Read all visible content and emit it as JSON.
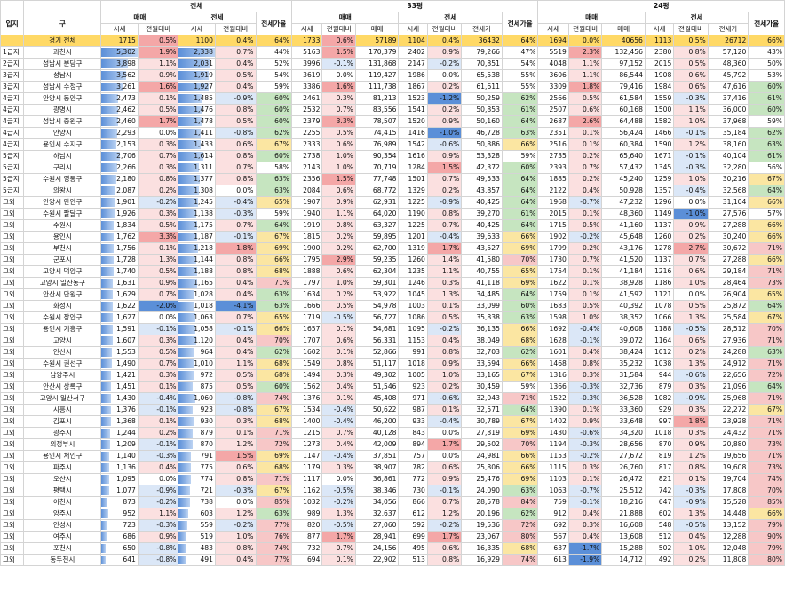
{
  "headers": {
    "ipji": "입지",
    "gu": "구",
    "groups": [
      "전체",
      "33평",
      "24평"
    ],
    "sub": [
      "매매",
      "전세",
      "전세가율"
    ],
    "sub_nested": [
      "매매",
      "전세",
      "전세가",
      "전세가율"
    ],
    "leaf": [
      "시세",
      "전월대비"
    ]
  },
  "total": {
    "ipji": "",
    "gu": "경기 전체",
    "v": [
      "1715",
      "0.5%",
      "1100",
      "0.4%",
      "64%",
      "1733",
      "0.6%",
      "57189",
      "1104",
      "0.4%",
      "36432",
      "64%",
      "1694",
      "0.0%",
      "40656",
      "1113",
      "0.5%",
      "26712",
      "66%"
    ]
  },
  "rows": [
    {
      "ipji": "1급지",
      "gu": "과천시",
      "v": [
        "5,302",
        "1.9%",
        "2,338",
        "0.7%",
        "44%",
        "5163",
        "1.5%",
        "170,379",
        "2402",
        "0.9%",
        "79,266",
        "47%",
        "5519",
        "2.3%",
        "132,456",
        "2380",
        "0.8%",
        "57,120",
        "43%"
      ]
    },
    {
      "ipji": "2급지",
      "gu": "성남시 분당구",
      "v": [
        "3,898",
        "1.1%",
        "2,031",
        "0.4%",
        "52%",
        "3996",
        "-0.1%",
        "131,868",
        "2147",
        "-0.2%",
        "70,851",
        "54%",
        "4048",
        "1.1%",
        "97,152",
        "2015",
        "0.5%",
        "48,360",
        "50%"
      ]
    },
    {
      "ipji": "3급지",
      "gu": "성남시",
      "v": [
        "3,562",
        "0.9%",
        "1,919",
        "0.5%",
        "54%",
        "3619",
        "0.0%",
        "119,427",
        "1986",
        "0.0%",
        "65,538",
        "55%",
        "3606",
        "1.1%",
        "86,544",
        "1908",
        "0.6%",
        "45,792",
        "53%"
      ]
    },
    {
      "ipji": "3급지",
      "gu": "성남시 수정구",
      "v": [
        "3,261",
        "1.6%",
        "1,927",
        "0.4%",
        "59%",
        "3386",
        "1.6%",
        "111,738",
        "1867",
        "0.2%",
        "61,611",
        "55%",
        "3309",
        "1.8%",
        "79,416",
        "1984",
        "0.6%",
        "47,616",
        "60%"
      ]
    },
    {
      "ipji": "4급지",
      "gu": "안양시 동안구",
      "v": [
        "2,473",
        "0.1%",
        "1,485",
        "-0.9%",
        "60%",
        "2461",
        "0.3%",
        "81,213",
        "1523",
        "-1.2%",
        "50,259",
        "62%",
        "2566",
        "0.5%",
        "61,584",
        "1559",
        "-0.3%",
        "37,416",
        "61%"
      ]
    },
    {
      "ipji": "4급지",
      "gu": "광명시",
      "v": [
        "2,462",
        "0.5%",
        "1,476",
        "0.8%",
        "60%",
        "2532",
        "0.7%",
        "83,556",
        "1541",
        "0.2%",
        "50,853",
        "61%",
        "2507",
        "0.6%",
        "60,168",
        "1500",
        "1.1%",
        "36,000",
        "60%"
      ]
    },
    {
      "ipji": "4급지",
      "gu": "성남시 중원구",
      "v": [
        "2,460",
        "1.7%",
        "1,478",
        "0.5%",
        "60%",
        "2379",
        "3.3%",
        "78,507",
        "1520",
        "0.9%",
        "50,160",
        "64%",
        "2687",
        "2.6%",
        "64,488",
        "1582",
        "1.0%",
        "37,968",
        "59%"
      ]
    },
    {
      "ipji": "4급지",
      "gu": "안양시",
      "v": [
        "2,293",
        "0.0%",
        "1,411",
        "-0.8%",
        "62%",
        "2255",
        "0.5%",
        "74,415",
        "1416",
        "-1.0%",
        "46,728",
        "63%",
        "2351",
        "0.1%",
        "56,424",
        "1466",
        "-0.1%",
        "35,184",
        "62%"
      ]
    },
    {
      "ipji": "4급지",
      "gu": "용인시 수지구",
      "v": [
        "2,153",
        "0.3%",
        "1,433",
        "0.6%",
        "67%",
        "2333",
        "0.6%",
        "76,989",
        "1542",
        "-0.6%",
        "50,886",
        "66%",
        "2516",
        "0.1%",
        "60,384",
        "1590",
        "1.2%",
        "38,160",
        "63%"
      ]
    },
    {
      "ipji": "5급지",
      "gu": "하남시",
      "v": [
        "2,706",
        "0.7%",
        "1,614",
        "0.8%",
        "60%",
        "2738",
        "1.0%",
        "90,354",
        "1616",
        "0.9%",
        "53,328",
        "59%",
        "2735",
        "0.2%",
        "65,640",
        "1671",
        "-0.1%",
        "40,104",
        "61%"
      ]
    },
    {
      "ipji": "5급지",
      "gu": "구리시",
      "v": [
        "2,266",
        "0.3%",
        "1,311",
        "0.7%",
        "58%",
        "2143",
        "1.0%",
        "70,719",
        "1284",
        "1.5%",
        "42,372",
        "60%",
        "2393",
        "0.7%",
        "57,432",
        "1345",
        "-0.3%",
        "32,280",
        "56%"
      ]
    },
    {
      "ipji": "5급지",
      "gu": "수원시 영통구",
      "v": [
        "2,180",
        "0.8%",
        "1,377",
        "0.8%",
        "63%",
        "2356",
        "1.5%",
        "77,748",
        "1501",
        "0.7%",
        "49,533",
        "64%",
        "1885",
        "0.2%",
        "45,240",
        "1259",
        "1.0%",
        "30,216",
        "67%"
      ]
    },
    {
      "ipji": "5급지",
      "gu": "의왕시",
      "v": [
        "2,087",
        "0.2%",
        "1,308",
        "0.0%",
        "63%",
        "2084",
        "0.6%",
        "68,772",
        "1329",
        "0.2%",
        "43,857",
        "64%",
        "2122",
        "0.4%",
        "50,928",
        "1357",
        "-0.4%",
        "32,568",
        "64%"
      ]
    },
    {
      "ipji": "그외",
      "gu": "안양시 만안구",
      "v": [
        "1,901",
        "-0.2%",
        "1,245",
        "-0.4%",
        "65%",
        "1907",
        "0.9%",
        "62,931",
        "1225",
        "-0.9%",
        "40,425",
        "64%",
        "1968",
        "-0.7%",
        "47,232",
        "1296",
        "0.0%",
        "31,104",
        "66%"
      ]
    },
    {
      "ipji": "그외",
      "gu": "수원시 팔달구",
      "v": [
        "1,926",
        "0.3%",
        "1,138",
        "-0.3%",
        "59%",
        "1940",
        "1.1%",
        "64,020",
        "1190",
        "0.8%",
        "39,270",
        "61%",
        "2015",
        "0.1%",
        "48,360",
        "1149",
        "-1.0%",
        "27,576",
        "57%"
      ]
    },
    {
      "ipji": "그외",
      "gu": "수원시",
      "v": [
        "1,834",
        "0.5%",
        "1,175",
        "0.7%",
        "64%",
        "1919",
        "0.8%",
        "63,327",
        "1225",
        "0.7%",
        "40,425",
        "64%",
        "1715",
        "0.5%",
        "41,160",
        "1137",
        "0.9%",
        "27,288",
        "66%"
      ]
    },
    {
      "ipji": "그외",
      "gu": "용인시",
      "v": [
        "1,762",
        "3.3%",
        "1,187",
        "-0.1%",
        "67%",
        "1815",
        "0.2%",
        "59,895",
        "1201",
        "-0.4%",
        "39,633",
        "66%",
        "1902",
        "-0.2%",
        "45,648",
        "1260",
        "0.2%",
        "30,240",
        "66%"
      ]
    },
    {
      "ipji": "그외",
      "gu": "부천시",
      "v": [
        "1,756",
        "0.1%",
        "1,218",
        "1.8%",
        "69%",
        "1900",
        "0.2%",
        "62,700",
        "1319",
        "1.7%",
        "43,527",
        "69%",
        "1799",
        "0.2%",
        "43,176",
        "1278",
        "2.7%",
        "30,672",
        "71%"
      ]
    },
    {
      "ipji": "그외",
      "gu": "군포시",
      "v": [
        "1,728",
        "1.3%",
        "1,144",
        "0.8%",
        "66%",
        "1795",
        "2.9%",
        "59,235",
        "1260",
        "1.4%",
        "41,580",
        "70%",
        "1730",
        "0.7%",
        "41,520",
        "1137",
        "0.7%",
        "27,288",
        "66%"
      ]
    },
    {
      "ipji": "그외",
      "gu": "고양시 덕양구",
      "v": [
        "1,740",
        "0.5%",
        "1,188",
        "0.8%",
        "68%",
        "1888",
        "0.6%",
        "62,304",
        "1235",
        "1.1%",
        "40,755",
        "65%",
        "1754",
        "0.1%",
        "41,184",
        "1216",
        "0.6%",
        "29,184",
        "71%"
      ]
    },
    {
      "ipji": "그외",
      "gu": "고양시 일산동구",
      "v": [
        "1,631",
        "0.9%",
        "1,165",
        "0.4%",
        "71%",
        "1797",
        "1.0%",
        "59,301",
        "1246",
        "0.3%",
        "41,118",
        "69%",
        "1622",
        "0.1%",
        "38,928",
        "1186",
        "1.0%",
        "28,464",
        "73%"
      ]
    },
    {
      "ipji": "그외",
      "gu": "안산시 단원구",
      "v": [
        "1,629",
        "0.7%",
        "1,028",
        "0.4%",
        "63%",
        "1634",
        "0.2%",
        "53,922",
        "1045",
        "1.3%",
        "34,485",
        "64%",
        "1759",
        "0.1%",
        "41,592",
        "1121",
        "0.0%",
        "26,904",
        "65%"
      ]
    },
    {
      "ipji": "그외",
      "gu": "화성시",
      "v": [
        "1,622",
        "-2.0%",
        "1,018",
        "-4.1%",
        "63%",
        "1666",
        "0.5%",
        "54,978",
        "1003",
        "0.1%",
        "33,099",
        "60%",
        "1683",
        "0.5%",
        "40,392",
        "1078",
        "0.5%",
        "25,872",
        "64%"
      ]
    },
    {
      "ipji": "그외",
      "gu": "수원시 장안구",
      "v": [
        "1,627",
        "0.0%",
        "1,063",
        "0.7%",
        "65%",
        "1719",
        "-0.5%",
        "56,727",
        "1086",
        "0.5%",
        "35,838",
        "63%",
        "1598",
        "1.0%",
        "38,352",
        "1066",
        "1.3%",
        "25,584",
        "67%"
      ]
    },
    {
      "ipji": "그외",
      "gu": "용인시 기흥구",
      "v": [
        "1,591",
        "-0.1%",
        "1,058",
        "-0.1%",
        "66%",
        "1657",
        "0.1%",
        "54,681",
        "1095",
        "-0.2%",
        "36,135",
        "66%",
        "1692",
        "-0.4%",
        "40,608",
        "1188",
        "-0.5%",
        "28,512",
        "70%"
      ]
    },
    {
      "ipji": "그외",
      "gu": "고양시",
      "v": [
        "1,607",
        "0.3%",
        "1,120",
        "0.4%",
        "70%",
        "1707",
        "0.6%",
        "56,331",
        "1153",
        "0.4%",
        "38,049",
        "68%",
        "1628",
        "-0.1%",
        "39,072",
        "1164",
        "0.6%",
        "27,936",
        "71%"
      ]
    },
    {
      "ipji": "그외",
      "gu": "안산시",
      "v": [
        "1,553",
        "0.5%",
        "964",
        "0.4%",
        "62%",
        "1602",
        "0.1%",
        "52,866",
        "991",
        "0.8%",
        "32,703",
        "62%",
        "1601",
        "0.4%",
        "38,424",
        "1012",
        "0.2%",
        "24,288",
        "63%"
      ]
    },
    {
      "ipji": "그외",
      "gu": "수원시 권선구",
      "v": [
        "1,490",
        "0.7%",
        "1,010",
        "1.1%",
        "68%",
        "1549",
        "0.8%",
        "51,117",
        "1018",
        "0.9%",
        "33,594",
        "66%",
        "1468",
        "0.8%",
        "35,232",
        "1038",
        "1.3%",
        "24,912",
        "71%"
      ]
    },
    {
      "ipji": "그외",
      "gu": "남양주시",
      "v": [
        "1,421",
        "0.3%",
        "972",
        "0.5%",
        "68%",
        "1494",
        "0.3%",
        "49,302",
        "1005",
        "1.0%",
        "33,165",
        "67%",
        "1316",
        "0.3%",
        "31,584",
        "944",
        "-0.6%",
        "22,656",
        "72%"
      ]
    },
    {
      "ipji": "그외",
      "gu": "안산시 상록구",
      "v": [
        "1,451",
        "0.1%",
        "875",
        "0.5%",
        "60%",
        "1562",
        "0.4%",
        "51,546",
        "923",
        "0.2%",
        "30,459",
        "59%",
        "1366",
        "-0.3%",
        "32,736",
        "879",
        "0.3%",
        "21,096",
        "64%"
      ]
    },
    {
      "ipji": "그외",
      "gu": "고양시 일산서구",
      "v": [
        "1,430",
        "-0.4%",
        "1,060",
        "-0.8%",
        "74%",
        "1376",
        "0.1%",
        "45,408",
        "971",
        "-0.6%",
        "32,043",
        "71%",
        "1522",
        "-0.3%",
        "36,528",
        "1082",
        "-0.9%",
        "25,968",
        "71%"
      ]
    },
    {
      "ipji": "그외",
      "gu": "시흥시",
      "v": [
        "1,376",
        "-0.1%",
        "923",
        "-0.8%",
        "67%",
        "1534",
        "-0.4%",
        "50,622",
        "987",
        "0.1%",
        "32,571",
        "64%",
        "1390",
        "0.1%",
        "33,360",
        "929",
        "0.3%",
        "22,272",
        "67%"
      ]
    },
    {
      "ipji": "그외",
      "gu": "김포시",
      "v": [
        "1,368",
        "0.1%",
        "930",
        "0.3%",
        "68%",
        "1400",
        "-0.4%",
        "46,200",
        "933",
        "-0.4%",
        "30,789",
        "67%",
        "1402",
        "0.9%",
        "33,648",
        "997",
        "1.8%",
        "23,928",
        "71%"
      ]
    },
    {
      "ipji": "그외",
      "gu": "광주시",
      "v": [
        "1,244",
        "0.2%",
        "879",
        "0.1%",
        "71%",
        "1215",
        "0.7%",
        "40,128",
        "843",
        "0.0%",
        "27,819",
        "69%",
        "1430",
        "-0.6%",
        "34,320",
        "1018",
        "0.3%",
        "24,432",
        "71%"
      ]
    },
    {
      "ipji": "그외",
      "gu": "의정부시",
      "v": [
        "1,209",
        "-0.1%",
        "870",
        "1.2%",
        "72%",
        "1273",
        "0.4%",
        "42,009",
        "894",
        "1.7%",
        "29,502",
        "70%",
        "1194",
        "-0.3%",
        "28,656",
        "870",
        "0.9%",
        "20,880",
        "73%"
      ]
    },
    {
      "ipji": "그외",
      "gu": "용인시 처인구",
      "v": [
        "1,140",
        "-0.3%",
        "791",
        "1.5%",
        "69%",
        "1147",
        "-0.4%",
        "37,851",
        "757",
        "0.0%",
        "24,981",
        "66%",
        "1153",
        "-0.2%",
        "27,672",
        "819",
        "1.2%",
        "19,656",
        "71%"
      ]
    },
    {
      "ipji": "그외",
      "gu": "파주시",
      "v": [
        "1,136",
        "0.4%",
        "775",
        "0.6%",
        "68%",
        "1179",
        "0.3%",
        "38,907",
        "782",
        "0.6%",
        "25,806",
        "66%",
        "1115",
        "0.3%",
        "26,760",
        "817",
        "0.8%",
        "19,608",
        "73%"
      ]
    },
    {
      "ipji": "그외",
      "gu": "오산시",
      "v": [
        "1,095",
        "0.0%",
        "774",
        "0.8%",
        "71%",
        "1117",
        "0.0%",
        "36,861",
        "772",
        "0.9%",
        "25,476",
        "69%",
        "1103",
        "0.1%",
        "26,472",
        "821",
        "0.1%",
        "19,704",
        "74%"
      ]
    },
    {
      "ipji": "그외",
      "gu": "평택시",
      "v": [
        "1,077",
        "-0.9%",
        "721",
        "-0.3%",
        "67%",
        "1162",
        "-0.5%",
        "38,346",
        "730",
        "-0.1%",
        "24,090",
        "63%",
        "1063",
        "-0.7%",
        "25,512",
        "742",
        "-0.3%",
        "17,808",
        "70%"
      ]
    },
    {
      "ipji": "그외",
      "gu": "이천시",
      "v": [
        "873",
        "-0.2%",
        "738",
        "0.0%",
        "85%",
        "1032",
        "-0.2%",
        "34,056",
        "866",
        "0.7%",
        "28,578",
        "84%",
        "759",
        "-0.1%",
        "18,216",
        "647",
        "-0.9%",
        "15,528",
        "85%"
      ]
    },
    {
      "ipji": "그외",
      "gu": "양주시",
      "v": [
        "952",
        "1.1%",
        "603",
        "1.2%",
        "63%",
        "989",
        "1.3%",
        "32,637",
        "612",
        "1.2%",
        "20,196",
        "62%",
        "912",
        "0.4%",
        "21,888",
        "602",
        "1.3%",
        "14,448",
        "66%"
      ]
    },
    {
      "ipji": "그외",
      "gu": "안성시",
      "v": [
        "723",
        "-0.3%",
        "559",
        "-0.2%",
        "77%",
        "820",
        "-0.5%",
        "27,060",
        "592",
        "-0.2%",
        "19,536",
        "72%",
        "692",
        "0.3%",
        "16,608",
        "548",
        "-0.5%",
        "13,152",
        "79%"
      ]
    },
    {
      "ipji": "그외",
      "gu": "여주시",
      "v": [
        "686",
        "0.9%",
        "519",
        "1.0%",
        "76%",
        "877",
        "1.7%",
        "28,941",
        "699",
        "1.7%",
        "23,067",
        "80%",
        "567",
        "0.4%",
        "13,608",
        "512",
        "0.4%",
        "12,288",
        "90%"
      ]
    },
    {
      "ipji": "그외",
      "gu": "포천시",
      "v": [
        "650",
        "-0.8%",
        "483",
        "0.8%",
        "74%",
        "732",
        "0.7%",
        "24,156",
        "495",
        "0.6%",
        "16,335",
        "68%",
        "637",
        "-1.7%",
        "15,288",
        "502",
        "1.0%",
        "12,048",
        "79%"
      ]
    },
    {
      "ipji": "그외",
      "gu": "동두천시",
      "v": [
        "641",
        "-0.8%",
        "491",
        "0.4%",
        "77%",
        "694",
        "0.1%",
        "22,902",
        "513",
        "0.8%",
        "16,929",
        "74%",
        "613",
        "-1.9%",
        "14,712",
        "492",
        "0.2%",
        "11,808",
        "80%"
      ]
    }
  ],
  "colors": {
    "total_bg": "#ffd966",
    "bar": "#5b8fd8",
    "pos_strong": "#f4a7a7",
    "pos_light": "#fbe0e0",
    "neg_strong": "#5b8fd8",
    "neg_light": "#dbe7f7",
    "ratio_green": "#c6e5c0",
    "ratio_yellow": "#fbe6a2",
    "ratio_pink": "#f7c7c7",
    "ratio_white": "#ffffff"
  }
}
